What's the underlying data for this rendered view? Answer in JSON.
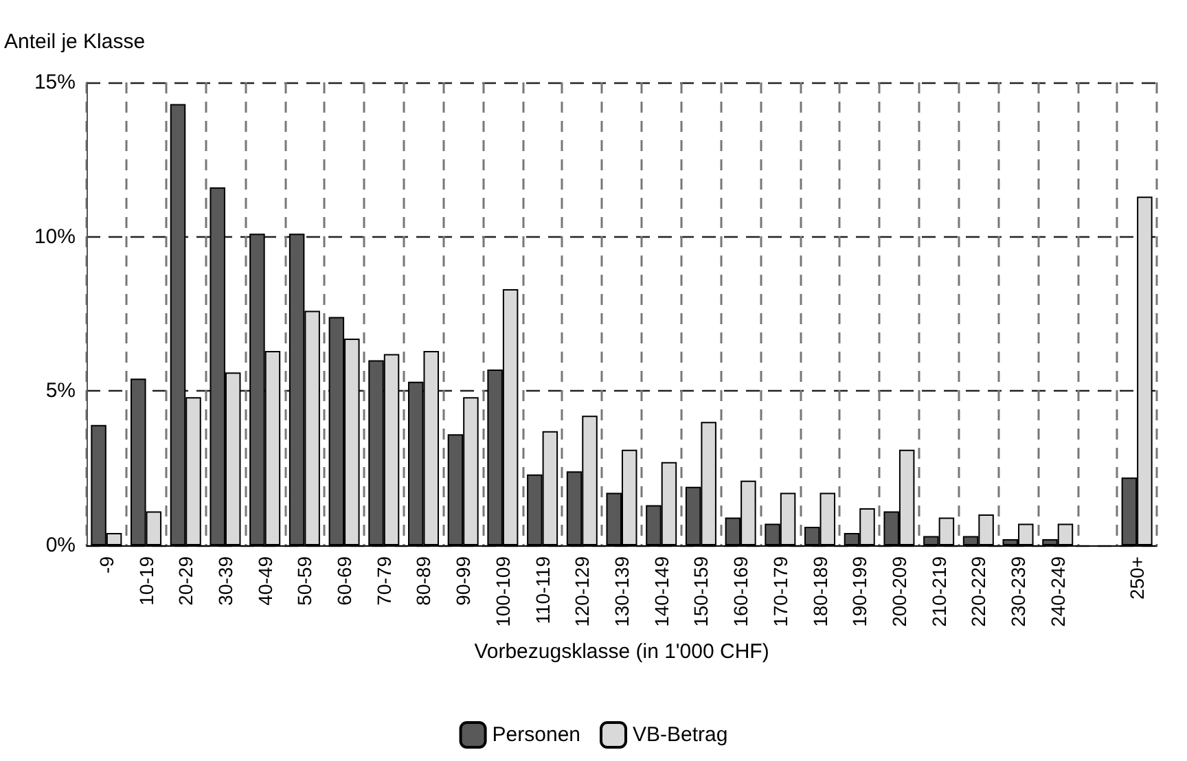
{
  "chart_data": {
    "type": "bar",
    "ylabel": "Anteil je Klasse",
    "xlabel": "Vorbezugsklasse (in 1'000 CHF)",
    "categories": [
      "-9",
      "10-19",
      "20-29",
      "30-39",
      "40-49",
      "50-59",
      "60-69",
      "70-79",
      "80-89",
      "90-99",
      "100-109",
      "110-119",
      "120-129",
      "130-139",
      "140-149",
      "150-159",
      "160-169",
      "170-179",
      "180-189",
      "190-199",
      "200-209",
      "210-219",
      "220-229",
      "230-239",
      "240-249",
      null,
      "250+"
    ],
    "series": [
      {
        "name": "Personen",
        "color": "#595959",
        "values": [
          3.9,
          5.4,
          14.3,
          11.6,
          10.1,
          10.1,
          7.4,
          6.0,
          5.3,
          3.6,
          5.7,
          2.3,
          2.4,
          1.7,
          1.3,
          1.9,
          0.9,
          0.7,
          0.6,
          0.4,
          1.1,
          0.3,
          0.3,
          0.2,
          0.2,
          null,
          2.2
        ]
      },
      {
        "name": "VB-Betrag",
        "color": "#d9d9d9",
        "values": [
          0.4,
          1.1,
          4.8,
          5.6,
          6.3,
          7.6,
          6.7,
          6.2,
          6.3,
          4.8,
          8.3,
          3.7,
          4.2,
          3.1,
          2.7,
          4.0,
          2.1,
          1.7,
          1.7,
          1.2,
          3.1,
          0.9,
          1.0,
          0.7,
          0.7,
          null,
          11.3
        ]
      }
    ],
    "ylim": [
      0,
      15
    ],
    "yticks": [
      {
        "value": 0,
        "label": "0%"
      },
      {
        "value": 5,
        "label": "5%"
      },
      {
        "value": 10,
        "label": "10%"
      },
      {
        "value": 15,
        "label": "15%"
      }
    ],
    "grid": true,
    "legend": "bottom"
  }
}
